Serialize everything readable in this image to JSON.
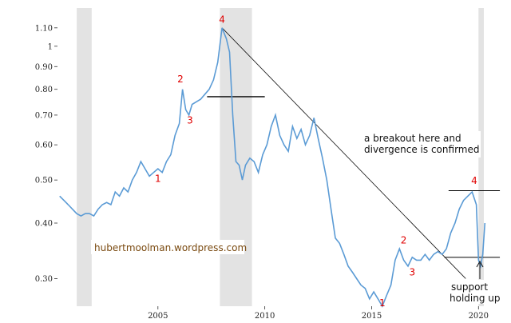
{
  "chart_data": {
    "type": "line",
    "title": "",
    "xlabel": "",
    "ylabel": "",
    "y_scale": "log",
    "xlim": [
      2000.3,
      2020.4
    ],
    "ylim": [
      0.26,
      1.16
    ],
    "x_ticks": [
      {
        "value": 2005,
        "label": "2005"
      },
      {
        "value": 2010,
        "label": "2010"
      },
      {
        "value": 2015,
        "label": "2015"
      },
      {
        "value": 2020,
        "label": "2020"
      }
    ],
    "y_ticks": [
      {
        "value": 1.1,
        "label": "1.10"
      },
      {
        "value": 1.0,
        "label": "1"
      },
      {
        "value": 0.9,
        "label": "0.90"
      },
      {
        "value": 0.8,
        "label": "0.80"
      },
      {
        "value": 0.7,
        "label": "0.70"
      },
      {
        "value": 0.6,
        "label": "0.60"
      },
      {
        "value": 0.5,
        "label": "0.50"
      },
      {
        "value": 0.4,
        "label": "0.40"
      },
      {
        "value": 0.3,
        "label": "0.30"
      }
    ],
    "grid": false,
    "line_color": "#5b9bd5",
    "recession_color": "#e3e3e3",
    "recessions": [
      [
        2001.2,
        2001.9
      ],
      [
        2007.9,
        2009.4
      ],
      [
        2020.0,
        2020.4
      ]
    ],
    "series": [
      {
        "x": [
          2000.4,
          2000.6,
          2000.8,
          2001.0,
          2001.2,
          2001.4,
          2001.6,
          2001.8,
          2002.0,
          2002.2,
          2002.4,
          2002.6,
          2002.8,
          2003.0,
          2003.2,
          2003.4,
          2003.6,
          2003.8,
          2004.0,
          2004.2,
          2004.4,
          2004.6,
          2004.8,
          2005.0,
          2005.2,
          2005.4,
          2005.6,
          2005.8,
          2006.0,
          2006.15,
          2006.3,
          2006.45,
          2006.6,
          2006.8,
          2007.0,
          2007.2,
          2007.4,
          2007.6,
          2007.8,
          2008.0,
          2008.2,
          2008.35,
          2008.5,
          2008.65,
          2008.8,
          2008.95,
          2009.1,
          2009.3,
          2009.5,
          2009.7,
          2009.9,
          2010.1,
          2010.3,
          2010.5,
          2010.7,
          2010.9,
          2011.1,
          2011.3,
          2011.5,
          2011.7,
          2011.9,
          2012.1,
          2012.3,
          2012.5,
          2012.7,
          2012.9,
          2013.1,
          2013.3,
          2013.5,
          2013.7,
          2013.9,
          2014.1,
          2014.3,
          2014.5,
          2014.7,
          2014.9,
          2015.1,
          2015.3,
          2015.5,
          2015.7,
          2015.9,
          2016.1,
          2016.3,
          2016.5,
          2016.7,
          2016.9,
          2017.1,
          2017.3,
          2017.5,
          2017.7,
          2017.9,
          2018.1,
          2018.3,
          2018.5,
          2018.7,
          2018.9,
          2019.1,
          2019.3,
          2019.5,
          2019.7,
          2019.9,
          2020.0,
          2020.1,
          2020.2,
          2020.3
        ],
        "y": [
          0.46,
          0.45,
          0.44,
          0.43,
          0.42,
          0.415,
          0.42,
          0.42,
          0.415,
          0.43,
          0.44,
          0.445,
          0.44,
          0.47,
          0.46,
          0.48,
          0.47,
          0.5,
          0.52,
          0.55,
          0.53,
          0.51,
          0.52,
          0.53,
          0.52,
          0.55,
          0.57,
          0.63,
          0.67,
          0.8,
          0.72,
          0.7,
          0.74,
          0.75,
          0.76,
          0.78,
          0.8,
          0.84,
          0.92,
          1.1,
          1.04,
          0.97,
          0.7,
          0.55,
          0.54,
          0.5,
          0.54,
          0.56,
          0.55,
          0.52,
          0.57,
          0.6,
          0.66,
          0.7,
          0.63,
          0.6,
          0.58,
          0.66,
          0.62,
          0.65,
          0.6,
          0.63,
          0.69,
          0.62,
          0.56,
          0.5,
          0.43,
          0.37,
          0.36,
          0.34,
          0.32,
          0.31,
          0.3,
          0.29,
          0.285,
          0.27,
          0.28,
          0.27,
          0.26,
          0.275,
          0.29,
          0.33,
          0.35,
          0.33,
          0.32,
          0.335,
          0.33,
          0.33,
          0.34,
          0.33,
          0.34,
          0.345,
          0.34,
          0.35,
          0.38,
          0.4,
          0.43,
          0.45,
          0.46,
          0.47,
          0.44,
          0.33,
          0.32,
          0.34,
          0.4
        ]
      }
    ],
    "wave_labels": [
      {
        "text": "4",
        "x": 2008.0,
        "y": 1.13
      },
      {
        "text": "2",
        "x": 2006.05,
        "y": 0.83
      },
      {
        "text": "3",
        "x": 2006.5,
        "y": 0.67
      },
      {
        "text": "1",
        "x": 2005.0,
        "y": 0.495
      },
      {
        "text": "1",
        "x": 2015.5,
        "y": 0.26
      },
      {
        "text": "2",
        "x": 2016.5,
        "y": 0.36
      },
      {
        "text": "3",
        "x": 2016.9,
        "y": 0.305
      },
      {
        "text": "4",
        "x": 2019.8,
        "y": 0.49
      }
    ],
    "trendline": {
      "from": [
        2008.0,
        1.1
      ],
      "to": [
        2019.4,
        0.3
      ]
    },
    "level_lines": [
      {
        "y": 0.77,
        "x0": 2007.3,
        "x1": 2010.0
      },
      {
        "y": 0.473,
        "x0": 2018.6,
        "x1": 2021.0
      },
      {
        "y": 0.335,
        "x0": 2018.4,
        "x1": 2021.0
      }
    ],
    "annotations": {
      "breakout": [
        "a breakout here and",
        "divergence is confirmed"
      ],
      "support": [
        "support",
        "holding up"
      ],
      "watermark": "hubertmoolman.wordpress.com"
    }
  }
}
